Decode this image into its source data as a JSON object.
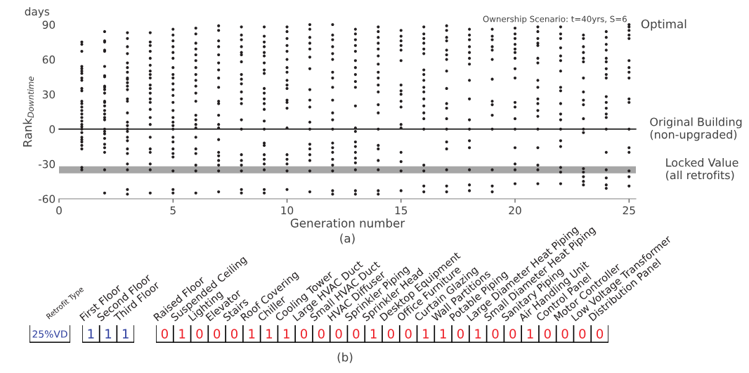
{
  "chart_data": [
    {
      "type": "scatter",
      "xlabel": "Generation number",
      "ylabel": "Rank$_{Downtime}$",
      "annotations": [
        "days",
        "Ownership Scenario: t=40yrs, S=6",
        "(a)",
        {
          "text": "Optimal",
          "x": 25,
          "y": 88
        }
      ],
      "xlim": [
        0,
        25.3
      ],
      "ylim": [
        -60,
        90
      ],
      "xticks": [
        0,
        5,
        10,
        15,
        20,
        25
      ],
      "yticks": [
        -60,
        -30,
        0,
        30,
        60,
        90
      ],
      "grid": false,
      "marker": "circle",
      "ref_lines": [
        {
          "axis": "y",
          "value": 0,
          "label": "Original Building\n(non-upgraded)",
          "color": "#000000"
        }
      ],
      "bands": [
        {
          "axis": "y",
          "from": -38,
          "to": -32,
          "label": "Locked Value\n(all retrofits)",
          "color": "#a6a6a6"
        }
      ],
      "series": [
        {
          "color": "#231f20",
          "x": [
            1,
            1,
            1,
            1,
            1,
            1,
            1,
            1,
            1,
            1,
            1,
            1,
            1,
            1,
            1,
            1,
            1,
            1,
            1,
            1,
            1,
            1,
            1,
            1,
            1,
            1,
            1,
            1,
            1,
            2,
            2,
            2,
            2,
            2,
            2,
            2,
            2,
            2,
            2,
            2,
            2,
            2,
            2,
            2,
            2,
            2,
            2,
            2,
            2,
            2,
            2,
            2,
            2,
            2,
            2,
            2,
            2,
            3,
            3,
            3,
            3,
            3,
            3,
            3,
            3,
            3,
            3,
            3,
            3,
            3,
            3,
            3,
            3,
            3,
            3,
            3,
            3,
            3,
            3,
            3,
            3,
            3,
            3,
            3,
            4,
            4,
            4,
            4,
            4,
            4,
            4,
            4,
            4,
            4,
            4,
            4,
            4,
            4,
            4,
            4,
            4,
            4,
            4,
            4,
            4,
            4,
            4,
            5,
            5,
            5,
            5,
            5,
            5,
            5,
            5,
            5,
            5,
            5,
            5,
            5,
            5,
            5,
            5,
            5,
            5,
            5,
            5,
            5,
            5,
            5,
            5,
            5,
            5,
            6,
            6,
            6,
            6,
            6,
            6,
            6,
            6,
            6,
            6,
            6,
            6,
            6,
            6,
            6,
            6,
            6,
            6,
            6,
            6,
            6,
            6,
            7,
            7,
            7,
            7,
            7,
            7,
            7,
            7,
            7,
            7,
            7,
            7,
            7,
            7,
            7,
            7,
            7,
            7,
            7,
            7,
            7,
            8,
            8,
            8,
            8,
            8,
            8,
            8,
            8,
            8,
            8,
            8,
            8,
            8,
            8,
            8,
            8,
            8,
            8,
            8,
            8,
            8,
            9,
            9,
            9,
            9,
            9,
            9,
            9,
            9,
            9,
            9,
            9,
            9,
            9,
            9,
            9,
            9,
            9,
            9,
            9,
            9,
            9,
            9,
            9,
            9,
            10,
            10,
            10,
            10,
            10,
            10,
            10,
            10,
            10,
            10,
            10,
            10,
            10,
            10,
            10,
            10,
            10,
            10,
            10,
            10,
            11,
            11,
            11,
            11,
            11,
            11,
            11,
            11,
            11,
            11,
            11,
            11,
            11,
            11,
            11,
            11,
            11,
            11,
            12,
            12,
            12,
            12,
            12,
            12,
            12,
            12,
            12,
            12,
            12,
            12,
            12,
            12,
            12,
            12,
            12,
            12,
            12,
            12,
            12,
            13,
            13,
            13,
            13,
            13,
            13,
            13,
            13,
            13,
            13,
            13,
            13,
            13,
            13,
            13,
            13,
            13,
            13,
            13,
            13,
            13,
            14,
            14,
            14,
            14,
            14,
            14,
            14,
            14,
            14,
            14,
            14,
            14,
            14,
            14,
            14,
            14,
            14,
            14,
            14,
            14,
            15,
            15,
            15,
            15,
            15,
            15,
            15,
            15,
            15,
            15,
            15,
            15,
            15,
            15,
            15,
            15,
            15,
            16,
            16,
            16,
            16,
            16,
            16,
            16,
            16,
            16,
            16,
            16,
            16,
            16,
            16,
            16,
            16,
            16,
            16,
            16,
            16,
            17,
            17,
            17,
            17,
            17,
            17,
            17,
            17,
            17,
            17,
            17,
            17,
            17,
            17,
            17,
            17,
            17,
            17,
            18,
            18,
            18,
            18,
            18,
            18,
            18,
            18,
            18,
            18,
            18,
            18,
            18,
            18,
            18,
            18,
            19,
            19,
            19,
            19,
            19,
            19,
            19,
            19,
            19,
            19,
            19,
            19,
            19,
            19,
            20,
            20,
            20,
            20,
            20,
            20,
            20,
            20,
            20,
            20,
            20,
            20,
            20,
            20,
            20,
            20,
            20,
            21,
            21,
            21,
            21,
            21,
            21,
            21,
            21,
            21,
            21,
            21,
            21,
            21,
            21,
            21,
            21,
            21,
            21,
            22,
            22,
            22,
            22,
            22,
            22,
            22,
            22,
            22,
            22,
            22,
            22,
            22,
            22,
            22,
            22,
            22,
            22,
            23,
            23,
            23,
            23,
            23,
            23,
            23,
            23,
            23,
            23,
            23,
            23,
            23,
            23,
            23,
            23,
            23,
            23,
            24,
            24,
            24,
            24,
            24,
            24,
            24,
            24,
            24,
            24,
            24,
            24,
            24,
            24,
            24,
            24,
            24,
            24,
            24,
            24,
            25,
            25,
            25,
            25,
            25,
            25,
            25,
            25,
            25,
            25,
            25,
            25,
            25,
            25,
            25,
            25,
            25
          ],
          "values": [
            75,
            73,
            67,
            54,
            52,
            50,
            48,
            44,
            42,
            35,
            33,
            24,
            22,
            19,
            16,
            13,
            10,
            7,
            4,
            2,
            0,
            -3,
            -7,
            -9,
            -11,
            -14,
            -17,
            -33,
            -35,
            84,
            76,
            75,
            68,
            67,
            54,
            46,
            45,
            37,
            36,
            34,
            31,
            24,
            23,
            20,
            16,
            13,
            10,
            8,
            0,
            -2,
            -4,
            -8,
            -13,
            -16,
            -20,
            -35,
            -55,
            83,
            78,
            71,
            65,
            57,
            53,
            49,
            44,
            43,
            40,
            37,
            34,
            26,
            24,
            14,
            6,
            3,
            0,
            -2,
            -7,
            -10,
            -17,
            -21,
            -30,
            -35,
            -52,
            -56,
            83,
            75,
            72,
            67,
            61,
            55,
            50,
            47,
            44,
            38,
            35,
            31,
            26,
            23,
            17,
            10,
            4,
            -7,
            -17,
            -20,
            -30,
            -35,
            -55,
            86,
            81,
            76,
            71,
            66,
            61,
            53,
            47,
            44,
            39,
            34,
            29,
            23,
            16,
            10,
            6,
            3,
            0,
            -7,
            -11,
            -17,
            -21,
            -24,
            -36,
            -52,
            -55,
            87,
            82,
            74,
            69,
            64,
            59,
            53,
            47,
            42,
            37,
            31,
            24,
            12,
            8,
            4,
            1,
            -7,
            -17,
            -21,
            -31,
            -36,
            -55,
            89,
            85,
            76,
            71,
            64,
            57,
            51,
            44,
            36,
            24,
            22,
            12,
            4,
            1,
            -9,
            -20,
            -23,
            -27,
            -31,
            -36,
            -54,
            88,
            81,
            77,
            71,
            66,
            64,
            58,
            47,
            43,
            39,
            32,
            26,
            22,
            8,
            0,
            -22,
            -27,
            -31,
            -36,
            -52,
            -55,
            88,
            80,
            75,
            71,
            66,
            63,
            57,
            51,
            48,
            35,
            31,
            26,
            22,
            17,
            7,
            0,
            -12,
            -14,
            -22,
            -26,
            -30,
            -35,
            -52,
            -55,
            88,
            84,
            78,
            72,
            67,
            60,
            53,
            49,
            42,
            38,
            35,
            25,
            23,
            18,
            1,
            -22,
            -26,
            -30,
            -36,
            -52,
            90,
            86,
            79,
            74,
            69,
            62,
            52,
            34,
            25,
            19,
            6,
            0,
            -13,
            -17,
            -22,
            -27,
            -36,
            -54,
            90,
            81,
            77,
            71,
            65,
            60,
            49,
            44,
            36,
            25,
            14,
            8,
            0,
            -12,
            -16,
            -20,
            -26,
            -31,
            -36,
            -53,
            -56,
            86,
            82,
            77,
            72,
            67,
            59,
            53,
            47,
            41,
            36,
            20,
            1,
            -2,
            -11,
            -15,
            -20,
            -25,
            -29,
            -35,
            -53,
            -56,
            88,
            84,
            79,
            74,
            69,
            63,
            56,
            49,
            44,
            38,
            32,
            21,
            14,
            0,
            -14,
            -17,
            -27,
            -35,
            -53,
            -56,
            85,
            80,
            76,
            72,
            68,
            59,
            38,
            33,
            30,
            24,
            19,
            4,
            1,
            -20,
            -28,
            -36,
            -53,
            88,
            82,
            78,
            74,
            69,
            65,
            51,
            47,
            42,
            36,
            32,
            26,
            20,
            14,
            9,
            0,
            -31,
            -36,
            -49,
            -54,
            89,
            85,
            79,
            76,
            68,
            64,
            60,
            50,
            35,
            22,
            18,
            9,
            0,
            -11,
            -17,
            -35,
            -49,
            -54,
            86,
            81,
            77,
            71,
            66,
            61,
            56,
            42,
            26,
            8,
            0,
            -10,
            -16,
            -35,
            -48,
            -53,
            86,
            80,
            77,
            71,
            68,
            60,
            43,
            24,
            21,
            12,
            0,
            -35,
            -49,
            -54,
            87,
            82,
            78,
            73,
            69,
            66,
            61,
            52,
            44,
            23,
            19,
            9,
            0,
            -16,
            -30,
            -35,
            -47,
            88,
            84,
            78,
            74,
            72,
            61,
            57,
            42,
            36,
            26,
            22,
            16,
            11,
            0,
            -16,
            -31,
            -35,
            -47,
            88,
            82,
            78,
            70,
            63,
            59,
            50,
            36,
            33,
            22,
            13,
            8,
            0,
            -10,
            -15,
            -33,
            -37,
            -47,
            81,
            78,
            71,
            66,
            61,
            58,
            44,
            32,
            25,
            21,
            9,
            0,
            -3,
            -34,
            -37,
            -41,
            -45,
            -48,
            84,
            79,
            73,
            68,
            61,
            58,
            52,
            47,
            44,
            28,
            23,
            18,
            13,
            10,
            0,
            -20,
            -35,
            -42,
            -48,
            -51,
            90,
            88,
            85,
            81,
            78,
            59,
            53,
            49,
            44,
            26,
            23,
            0,
            -16,
            -20,
            -36,
            -41,
            -49
          ]
        }
      ]
    },
    {
      "type": "other",
      "categories": [
        "Retrofit Type"
      ],
      "value_labels": [
        "25%VD"
      ],
      "color": "#2e3f9e"
    },
    {
      "type": "other",
      "categories": [
        "First Floor",
        "Second Floor",
        "Third Floor"
      ],
      "value_labels": [
        "1",
        "1",
        "1"
      ],
      "color": "#2e3f9e"
    },
    {
      "type": "other",
      "categories": [
        "Raised Floor",
        "Suspended Ceiling",
        "Lighting",
        "Elevator",
        "Stairs",
        "Roof Covering",
        "Chiller",
        "Cooling Tower",
        "Large HVAC Duct",
        "Small HVAC Duct",
        "HVAC Diffuser",
        "Sprinkler Piping",
        "Sprinkler Head",
        "Desktop Equipment",
        "Office Furniture",
        "Curtain Glazing",
        "Wall Partitions",
        "Potable Piping",
        "Large Diameter Heat Piping",
        "Small Diameter Heat Piping",
        "Sanitary Piping",
        "Air Handling Unit",
        "Control Panel",
        "Motor Controller",
        "Low Voltage Transformer",
        "Distribution Panel"
      ],
      "value_labels": [
        "0",
        "1",
        "0",
        "0",
        "0",
        "1",
        "1",
        "1",
        "0",
        "0",
        "0",
        "0",
        "1",
        "0",
        "0",
        "1",
        "1",
        "0",
        "1",
        "0",
        "0",
        "1",
        "0",
        "0",
        "0",
        "0"
      ],
      "color": "#ed1c24",
      "annotations": [
        "(b)"
      ]
    }
  ]
}
